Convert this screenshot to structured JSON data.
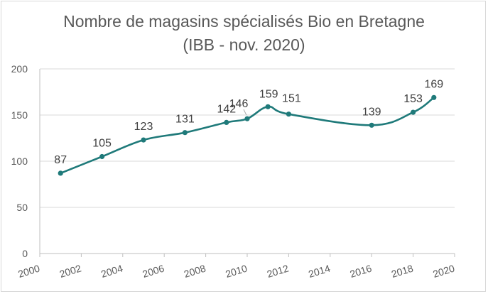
{
  "chart_data": {
    "type": "line",
    "title": "Nombre de magasins spécialisés Bio en Bretagne",
    "subtitle": "(IBB - nov. 2020)",
    "xlabel": "",
    "ylabel": "",
    "xlim": [
      2000,
      2020
    ],
    "ylim": [
      0,
      200
    ],
    "x_ticks": [
      2000,
      2002,
      2004,
      2006,
      2008,
      2010,
      2012,
      2014,
      2016,
      2018,
      2020
    ],
    "y_ticks": [
      0,
      50,
      100,
      150,
      200
    ],
    "grid": "horizontal",
    "legend": "none",
    "smooth": true,
    "color": "#1f7a7a",
    "series": [
      {
        "x": [
          2001,
          2003,
          2005,
          2007,
          2009,
          2010,
          2011,
          2012,
          2016,
          2018,
          2019
        ],
        "values": [
          87,
          105,
          123,
          131,
          142,
          146,
          159,
          151,
          139,
          153,
          169
        ]
      }
    ]
  }
}
